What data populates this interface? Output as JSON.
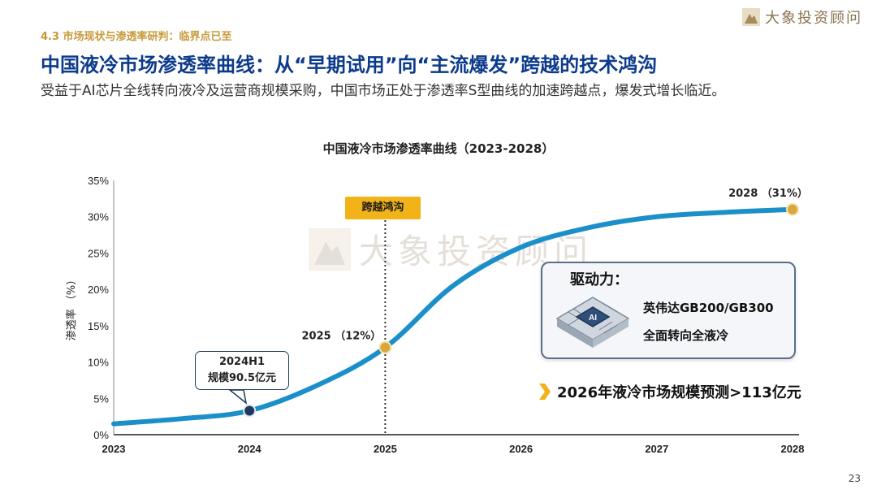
{
  "header": {
    "section_label": "4.3 市场现状与渗透率研判：临界点已至",
    "brand": "大象投资顾问",
    "title": "中国液冷市场渗透率曲线：从“早期试用”向“主流爆发”跨越的技术鸿沟",
    "subtitle": "受益于AI芯片全线转向液冷及运营商规模采购，中国市场正处于渗透率S型曲线的加速跨越点，爆发式增长临近。"
  },
  "watermark": "大象投资顾问",
  "annotations": {
    "callout_2024_line1": "2024H1",
    "callout_2024_line2": "规模90.5亿元",
    "crossing_badge": "跨越鸿沟",
    "drivers_title": "驱动力：",
    "drivers_line1": "英伟达GB200/GB300",
    "drivers_line2": "全面转向全液冷",
    "chip_label": "AI",
    "forecast": "2026年液冷市场规模预测>113亿元"
  },
  "chart_data": {
    "type": "line",
    "title": "中国液冷市场渗透率曲线（2023-2028）",
    "ylabel": "渗透率 （%）",
    "xlabel": "",
    "x_ticks": [
      "2023",
      "2024",
      "2025",
      "2026",
      "2027",
      "2028"
    ],
    "y_ticks": [
      "0%",
      "5%",
      "10%",
      "15%",
      "20%",
      "25%",
      "30%",
      "35%"
    ],
    "xlim": [
      2023,
      2028
    ],
    "ylim": [
      0,
      35
    ],
    "series": [
      {
        "values": [
          {
            "x": 2023.0,
            "y": 1.5
          },
          {
            "x": 2023.5,
            "y": 2.2
          },
          {
            "x": 2024.0,
            "y": 3.3
          },
          {
            "x": 2024.5,
            "y": 6.8
          },
          {
            "x": 2025.0,
            "y": 12.0
          },
          {
            "x": 2025.5,
            "y": 20.5
          },
          {
            "x": 2026.0,
            "y": 25.8
          },
          {
            "x": 2026.5,
            "y": 28.5
          },
          {
            "x": 2027.0,
            "y": 30.0
          },
          {
            "x": 2027.5,
            "y": 30.6
          },
          {
            "x": 2028.0,
            "y": 31.0
          }
        ]
      }
    ],
    "highlighted_points": [
      {
        "x": 2024.0,
        "y": 3.3,
        "label": ""
      },
      {
        "x": 2025.0,
        "y": 12.0,
        "label": "2025 （12%）"
      },
      {
        "x": 2028.0,
        "y": 31.0,
        "label": "2028 （31%）"
      }
    ],
    "reference_line_x": 2025,
    "colors": {
      "line": "#1b8fc9",
      "point_gold": "#d9a73c",
      "point_dark": "#1f3a5c"
    }
  },
  "page_number": "23"
}
